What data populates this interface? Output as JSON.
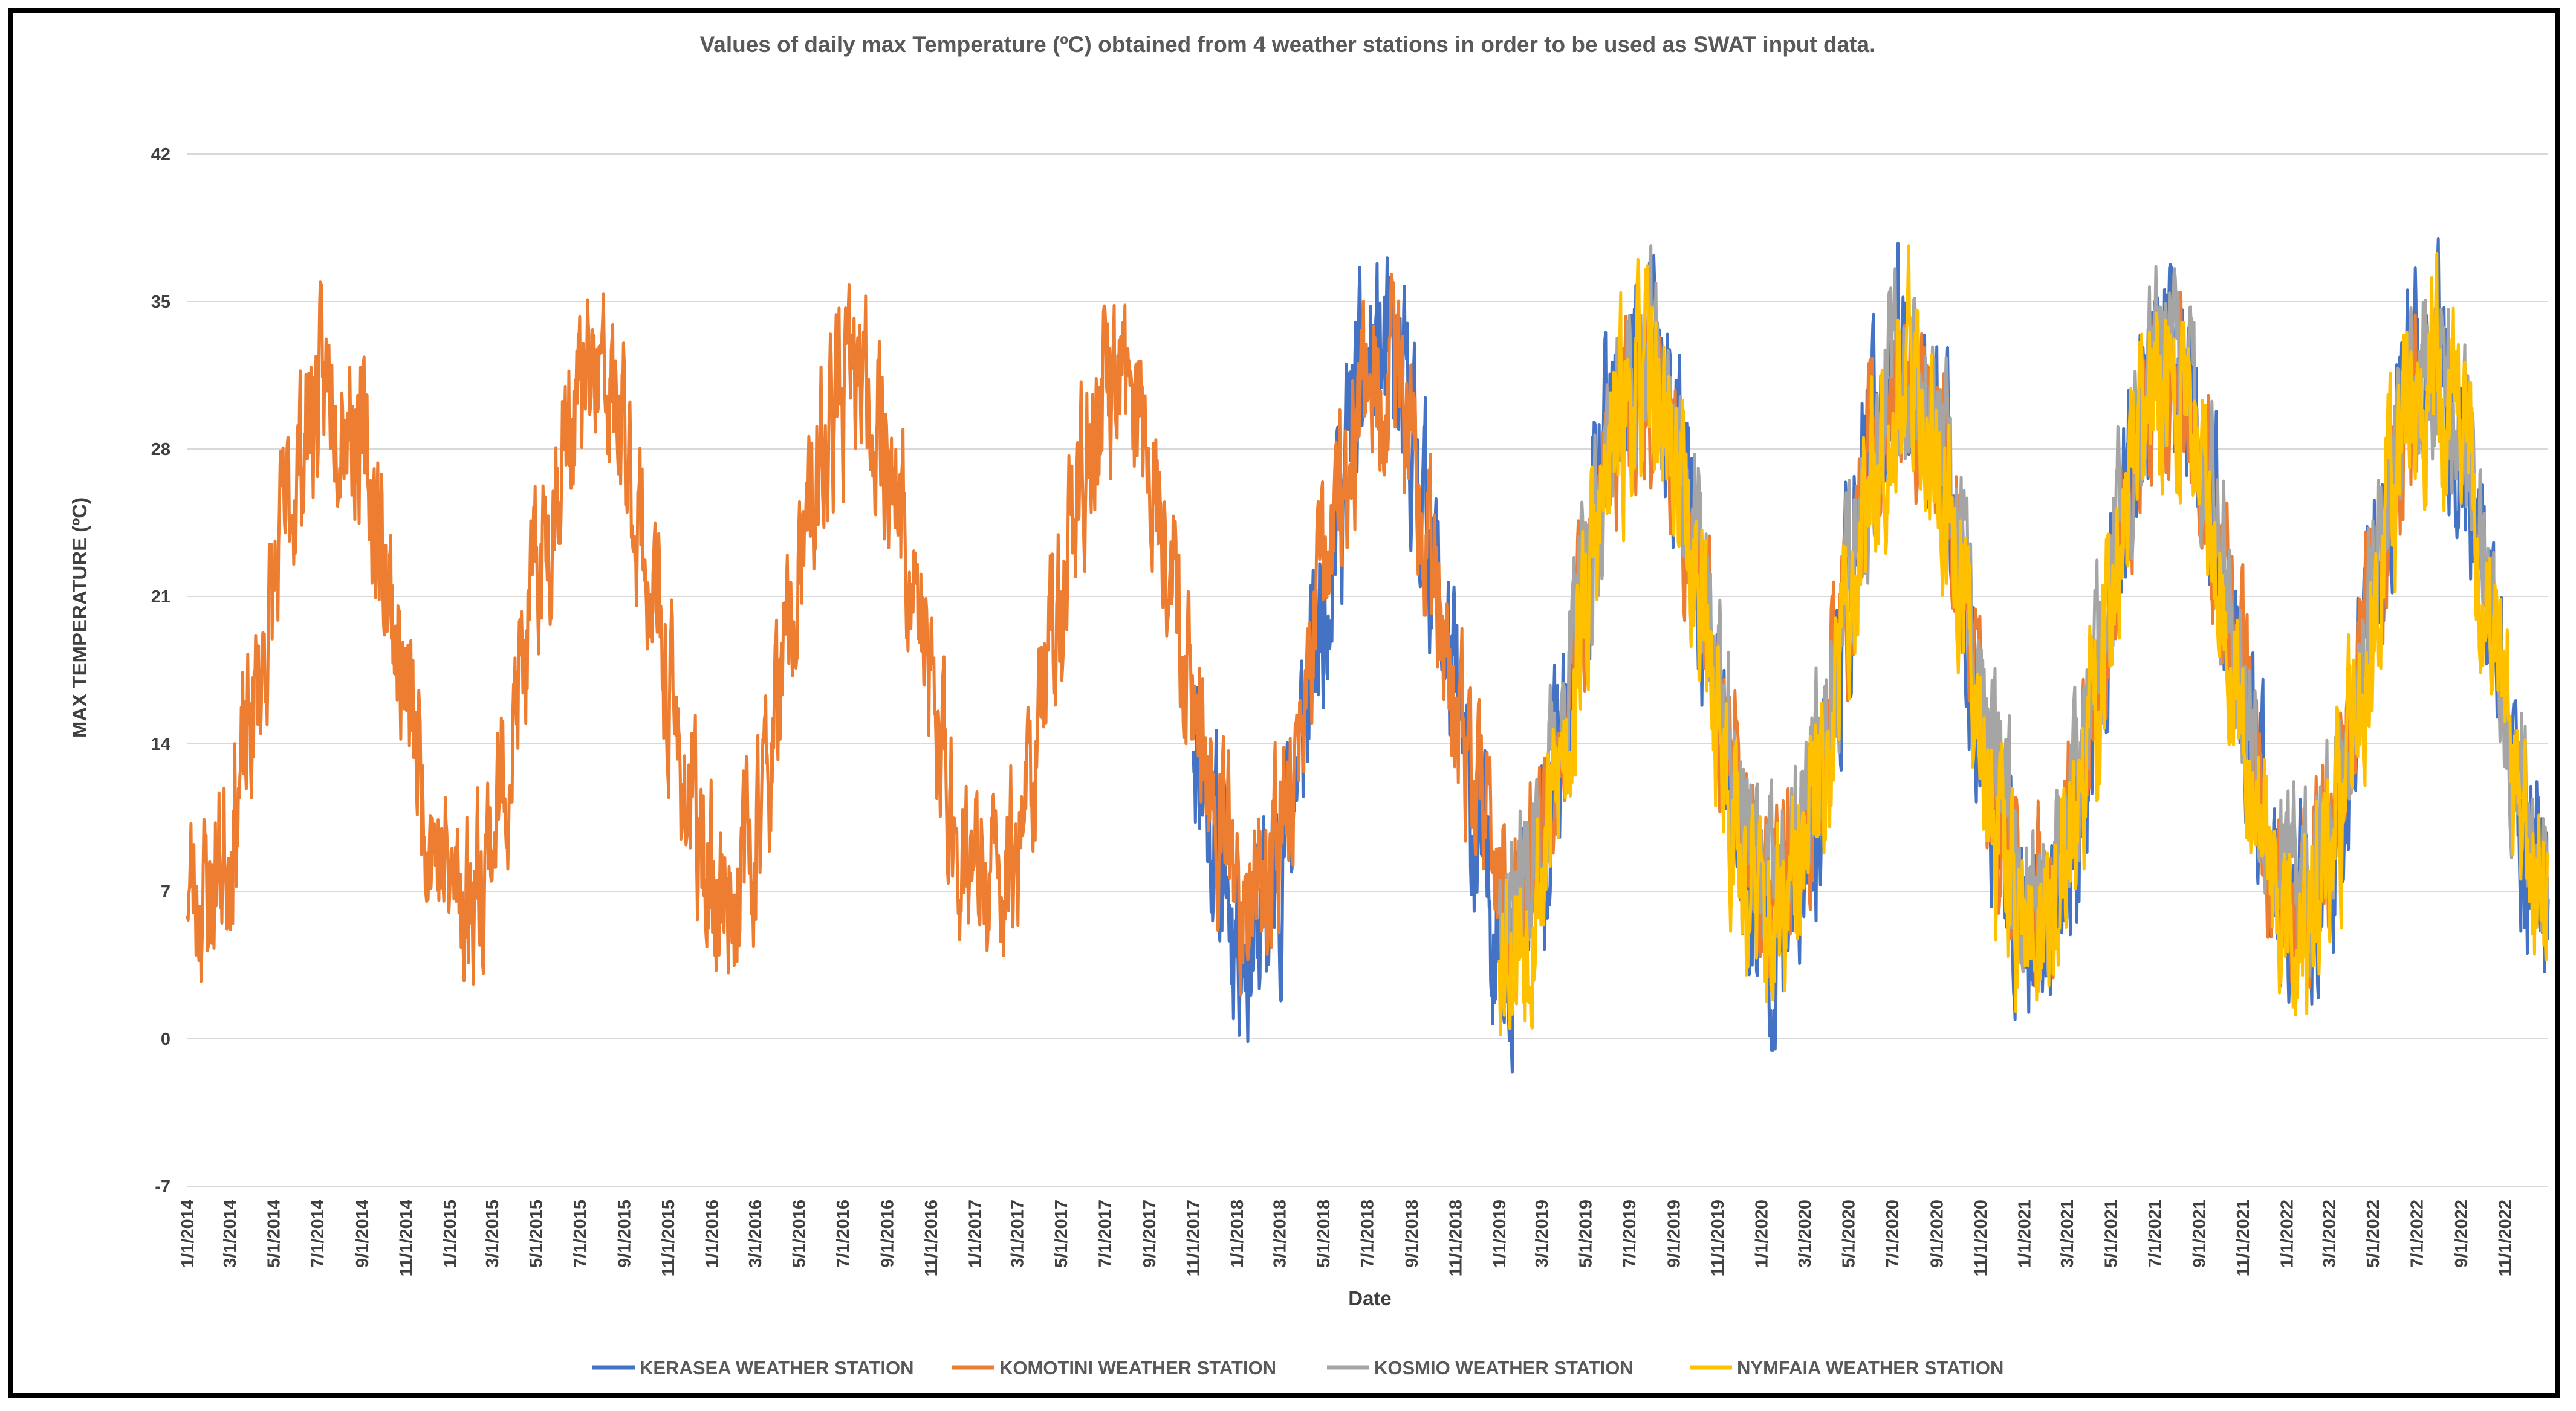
{
  "chart_data": {
    "type": "line",
    "title": "Values of daily max Temperature (ºC) obtained from 4 weather stations in order to be used as SWAT input data.",
    "xlabel": "Date",
    "ylabel": "MAX TEMPERATURE (ºC)",
    "ylim": [
      -7,
      42
    ],
    "yticks": [
      -7,
      0,
      7,
      14,
      21,
      28,
      35,
      42
    ],
    "xlim": [
      "1/1/2014",
      "12/31/2022"
    ],
    "xticks": [
      "1/1/2014",
      "3/1/2014",
      "5/1/2014",
      "7/1/2014",
      "9/1/2014",
      "11/1/2014",
      "1/1/2015",
      "3/1/2015",
      "5/1/2015",
      "7/1/2015",
      "9/1/2015",
      "11/1/2015",
      "1/1/2016",
      "3/1/2016",
      "5/1/2016",
      "7/1/2016",
      "9/1/2016",
      "11/1/2016",
      "1/1/2017",
      "3/1/2017",
      "5/1/2017",
      "7/1/2017",
      "9/1/2017",
      "11/1/2017",
      "1/1/2018",
      "3/1/2018",
      "5/1/2018",
      "7/1/2018",
      "9/1/2018",
      "11/1/2018",
      "1/1/2019",
      "3/1/2019",
      "5/1/2019",
      "7/1/2019",
      "9/1/2019",
      "11/1/2019",
      "1/1/2020",
      "3/1/2020",
      "5/1/2020",
      "7/1/2020",
      "9/1/2020",
      "11/1/2020",
      "1/1/2021",
      "3/1/2021",
      "5/1/2021",
      "7/1/2021",
      "9/1/2021",
      "11/1/2021",
      "1/1/2022",
      "3/1/2022",
      "5/1/2022",
      "7/1/2022",
      "9/1/2022",
      "11/1/2022"
    ],
    "grid": true,
    "legend_position": "bottom",
    "series": [
      {
        "name": "KERASEA WEATHER STATION",
        "color": "#4472C4",
        "start": "11/1/2017",
        "end": "12/31/2022",
        "seasonal_min": 5,
        "seasonal_max": 32,
        "noise": 4.5,
        "seed": 11
      },
      {
        "name": "KOMOTINI WEATHER STATION",
        "color": "#ED7D31",
        "start": "1/1/2014",
        "end": "6/30/2022",
        "seasonal_min": 7,
        "seasonal_max": 31,
        "noise": 4.0,
        "seed": 23
      },
      {
        "name": "KOSMIO WEATHER STATION",
        "color": "#A5A5A5",
        "start": "1/1/2019",
        "end": "12/31/2022",
        "seasonal_min": 7,
        "seasonal_max": 32,
        "noise": 4.0,
        "seed": 37
      },
      {
        "name": "NYMFAIA WEATHER STATION",
        "color": "#FFC000",
        "start": "1/1/2019",
        "end": "12/31/2022",
        "seasonal_min": 5,
        "seasonal_max": 31,
        "noise": 4.5,
        "seed": 53
      }
    ]
  }
}
